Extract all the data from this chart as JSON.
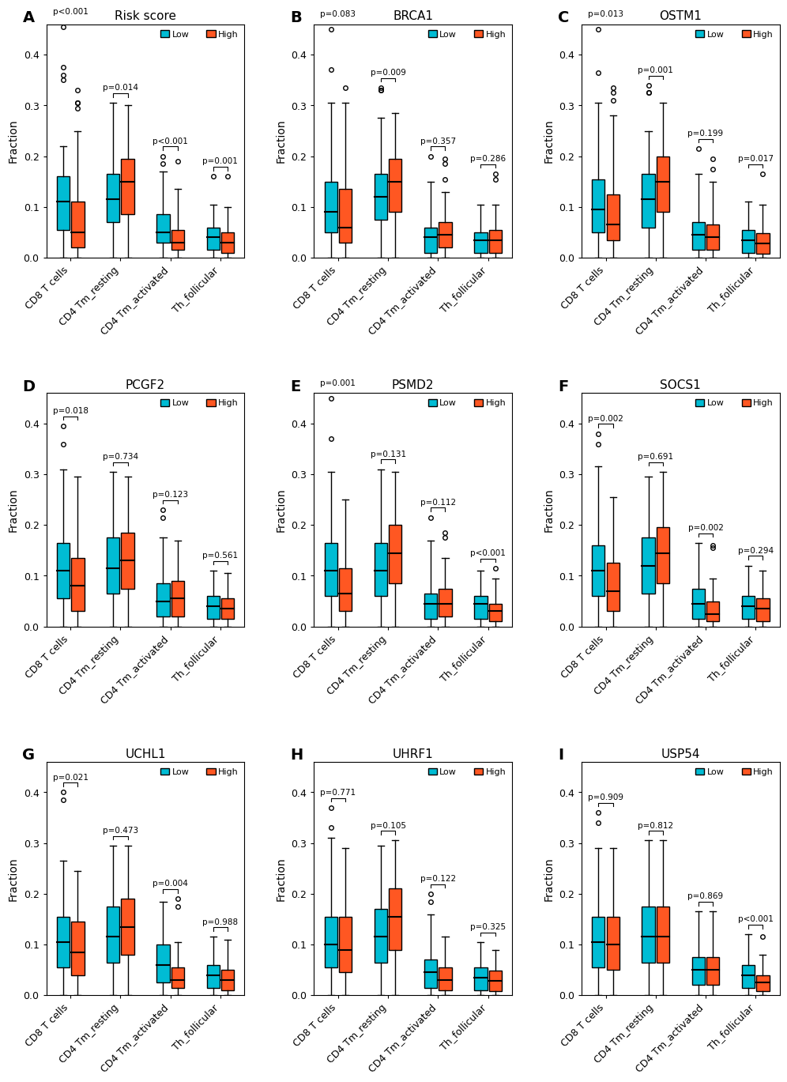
{
  "panels": [
    {
      "label": "A",
      "title": "Risk score",
      "categories": [
        "CD8 T cells",
        "CD4 Tm_resting",
        "CD4 Tm_activated",
        "Th_follicular"
      ],
      "pvalues": [
        "p<0.001",
        "p=0.014",
        "p<0.001",
        "p=0.001"
      ],
      "low": {
        "CD8 T cells": {
          "q1": 0.055,
          "median": 0.11,
          "q3": 0.16,
          "whislo": 0.0,
          "whishi": 0.22,
          "fliers": [
            0.35,
            0.36,
            0.375,
            0.455
          ]
        },
        "CD4 Tm_resting": {
          "q1": 0.07,
          "median": 0.115,
          "q3": 0.165,
          "whislo": 0.0,
          "whishi": 0.305,
          "fliers": []
        },
        "CD4 Tm_activated": {
          "q1": 0.03,
          "median": 0.05,
          "q3": 0.085,
          "whislo": 0.0,
          "whishi": 0.17,
          "fliers": [
            0.2,
            0.185
          ]
        },
        "Th_follicular": {
          "q1": 0.015,
          "median": 0.04,
          "q3": 0.06,
          "whislo": 0.0,
          "whishi": 0.105,
          "fliers": [
            0.16
          ]
        }
      },
      "high": {
        "CD8 T cells": {
          "q1": 0.02,
          "median": 0.05,
          "q3": 0.11,
          "whislo": 0.0,
          "whishi": 0.25,
          "fliers": [
            0.305,
            0.295,
            0.305,
            0.33
          ]
        },
        "CD4 Tm_resting": {
          "q1": 0.085,
          "median": 0.15,
          "q3": 0.195,
          "whislo": 0.0,
          "whishi": 0.3,
          "fliers": []
        },
        "CD4 Tm_activated": {
          "q1": 0.015,
          "median": 0.03,
          "q3": 0.055,
          "whislo": 0.0,
          "whishi": 0.135,
          "fliers": [
            0.19
          ]
        },
        "Th_follicular": {
          "q1": 0.01,
          "median": 0.03,
          "q3": 0.05,
          "whislo": 0.0,
          "whishi": 0.1,
          "fliers": [
            0.16
          ]
        }
      }
    },
    {
      "label": "B",
      "title": "BRCA1",
      "categories": [
        "CD8 T cells",
        "CD4 Tm_resting",
        "CD4 Tm_activated",
        "Th_follicular"
      ],
      "pvalues": [
        "p=0.083",
        "p=0.009",
        "p=0.357",
        "p=0.286"
      ],
      "low": {
        "CD8 T cells": {
          "q1": 0.05,
          "median": 0.09,
          "q3": 0.15,
          "whislo": 0.0,
          "whishi": 0.305,
          "fliers": [
            0.37,
            0.45
          ]
        },
        "CD4 Tm_resting": {
          "q1": 0.075,
          "median": 0.12,
          "q3": 0.165,
          "whislo": 0.0,
          "whishi": 0.275,
          "fliers": [
            0.33,
            0.33,
            0.335
          ]
        },
        "CD4 Tm_activated": {
          "q1": 0.01,
          "median": 0.04,
          "q3": 0.06,
          "whislo": 0.0,
          "whishi": 0.15,
          "fliers": [
            0.2
          ]
        },
        "Th_follicular": {
          "q1": 0.01,
          "median": 0.035,
          "q3": 0.05,
          "whislo": 0.0,
          "whishi": 0.105,
          "fliers": []
        }
      },
      "high": {
        "CD8 T cells": {
          "q1": 0.03,
          "median": 0.06,
          "q3": 0.135,
          "whislo": 0.0,
          "whishi": 0.305,
          "fliers": [
            0.335
          ]
        },
        "CD4 Tm_resting": {
          "q1": 0.09,
          "median": 0.15,
          "q3": 0.195,
          "whislo": 0.0,
          "whishi": 0.285,
          "fliers": []
        },
        "CD4 Tm_activated": {
          "q1": 0.02,
          "median": 0.045,
          "q3": 0.07,
          "whislo": 0.0,
          "whishi": 0.13,
          "fliers": [
            0.155,
            0.195,
            0.185
          ]
        },
        "Th_follicular": {
          "q1": 0.01,
          "median": 0.035,
          "q3": 0.055,
          "whislo": 0.0,
          "whishi": 0.105,
          "fliers": [
            0.155,
            0.165
          ]
        }
      }
    },
    {
      "label": "C",
      "title": "OSTM1",
      "categories": [
        "CD8 T cells",
        "CD4 Tm_resting",
        "CD4 Tm_activated",
        "Th_follicular"
      ],
      "pvalues": [
        "p=0.013",
        "p=0.001",
        "p=0.199",
        "p=0.017"
      ],
      "low": {
        "CD8 T cells": {
          "q1": 0.05,
          "median": 0.095,
          "q3": 0.155,
          "whislo": 0.0,
          "whishi": 0.305,
          "fliers": [
            0.365,
            0.45
          ]
        },
        "CD4 Tm_resting": {
          "q1": 0.06,
          "median": 0.115,
          "q3": 0.165,
          "whislo": 0.0,
          "whishi": 0.25,
          "fliers": [
            0.325,
            0.325,
            0.34
          ]
        },
        "CD4 Tm_activated": {
          "q1": 0.015,
          "median": 0.045,
          "q3": 0.07,
          "whislo": 0.0,
          "whishi": 0.165,
          "fliers": [
            0.215
          ]
        },
        "Th_follicular": {
          "q1": 0.01,
          "median": 0.035,
          "q3": 0.055,
          "whislo": 0.0,
          "whishi": 0.11,
          "fliers": []
        }
      },
      "high": {
        "CD8 T cells": {
          "q1": 0.035,
          "median": 0.065,
          "q3": 0.125,
          "whislo": 0.0,
          "whishi": 0.28,
          "fliers": [
            0.31,
            0.325,
            0.335
          ]
        },
        "CD4 Tm_resting": {
          "q1": 0.09,
          "median": 0.15,
          "q3": 0.2,
          "whislo": 0.0,
          "whishi": 0.305,
          "fliers": []
        },
        "CD4 Tm_activated": {
          "q1": 0.015,
          "median": 0.04,
          "q3": 0.065,
          "whislo": 0.0,
          "whishi": 0.15,
          "fliers": [
            0.195,
            0.175
          ]
        },
        "Th_follicular": {
          "q1": 0.008,
          "median": 0.028,
          "q3": 0.048,
          "whislo": 0.0,
          "whishi": 0.105,
          "fliers": [
            0.165
          ]
        }
      }
    },
    {
      "label": "D",
      "title": "PCGF2",
      "categories": [
        "CD8 T cells",
        "CD4 Tm_resting",
        "CD4 Tm_activated",
        "Th_follicular"
      ],
      "pvalues": [
        "p=0.018",
        "p=0.734",
        "p=0.123",
        "p=0.561"
      ],
      "low": {
        "CD8 T cells": {
          "q1": 0.055,
          "median": 0.11,
          "q3": 0.165,
          "whislo": 0.0,
          "whishi": 0.31,
          "fliers": [
            0.36,
            0.395
          ]
        },
        "CD4 Tm_resting": {
          "q1": 0.065,
          "median": 0.115,
          "q3": 0.175,
          "whislo": 0.0,
          "whishi": 0.305,
          "fliers": []
        },
        "CD4 Tm_activated": {
          "q1": 0.02,
          "median": 0.05,
          "q3": 0.085,
          "whislo": 0.0,
          "whishi": 0.175,
          "fliers": [
            0.215,
            0.23
          ]
        },
        "Th_follicular": {
          "q1": 0.015,
          "median": 0.04,
          "q3": 0.06,
          "whislo": 0.0,
          "whishi": 0.11,
          "fliers": []
        }
      },
      "high": {
        "CD8 T cells": {
          "q1": 0.03,
          "median": 0.08,
          "q3": 0.135,
          "whislo": 0.0,
          "whishi": 0.295,
          "fliers": []
        },
        "CD4 Tm_resting": {
          "q1": 0.075,
          "median": 0.13,
          "q3": 0.185,
          "whislo": 0.0,
          "whishi": 0.295,
          "fliers": []
        },
        "CD4 Tm_activated": {
          "q1": 0.02,
          "median": 0.055,
          "q3": 0.09,
          "whislo": 0.0,
          "whishi": 0.17,
          "fliers": []
        },
        "Th_follicular": {
          "q1": 0.015,
          "median": 0.035,
          "q3": 0.055,
          "whislo": 0.0,
          "whishi": 0.105,
          "fliers": []
        }
      }
    },
    {
      "label": "E",
      "title": "PSMD2",
      "categories": [
        "CD8 T cells",
        "CD4 Tm_resting",
        "CD4 Tm_activated",
        "Th_follicular"
      ],
      "pvalues": [
        "p=0.001",
        "p=0.131",
        "p=0.112",
        "p<0.001"
      ],
      "low": {
        "CD8 T cells": {
          "q1": 0.06,
          "median": 0.11,
          "q3": 0.165,
          "whislo": 0.0,
          "whishi": 0.305,
          "fliers": [
            0.37,
            0.45
          ]
        },
        "CD4 Tm_resting": {
          "q1": 0.06,
          "median": 0.11,
          "q3": 0.165,
          "whislo": 0.0,
          "whishi": 0.31,
          "fliers": []
        },
        "CD4 Tm_activated": {
          "q1": 0.015,
          "median": 0.045,
          "q3": 0.065,
          "whislo": 0.0,
          "whishi": 0.17,
          "fliers": [
            0.215
          ]
        },
        "Th_follicular": {
          "q1": 0.015,
          "median": 0.045,
          "q3": 0.06,
          "whislo": 0.0,
          "whishi": 0.11,
          "fliers": []
        }
      },
      "high": {
        "CD8 T cells": {
          "q1": 0.03,
          "median": 0.065,
          "q3": 0.115,
          "whislo": 0.0,
          "whishi": 0.25,
          "fliers": []
        },
        "CD4 Tm_resting": {
          "q1": 0.085,
          "median": 0.145,
          "q3": 0.2,
          "whislo": 0.0,
          "whishi": 0.305,
          "fliers": []
        },
        "CD4 Tm_activated": {
          "q1": 0.02,
          "median": 0.045,
          "q3": 0.075,
          "whislo": 0.0,
          "whishi": 0.135,
          "fliers": [
            0.185,
            0.175
          ]
        },
        "Th_follicular": {
          "q1": 0.01,
          "median": 0.03,
          "q3": 0.045,
          "whislo": 0.0,
          "whishi": 0.095,
          "fliers": [
            0.115
          ]
        }
      }
    },
    {
      "label": "F",
      "title": "SOCS1",
      "categories": [
        "CD8 T cells",
        "CD4 Tm_resting",
        "CD4 Tm_activated",
        "Th_follicular"
      ],
      "pvalues": [
        "p=0.002",
        "p=0.691",
        "p=0.002",
        "p=0.294"
      ],
      "low": {
        "CD8 T cells": {
          "q1": 0.06,
          "median": 0.11,
          "q3": 0.16,
          "whislo": 0.0,
          "whishi": 0.315,
          "fliers": [
            0.36,
            0.38
          ]
        },
        "CD4 Tm_resting": {
          "q1": 0.065,
          "median": 0.12,
          "q3": 0.175,
          "whislo": 0.0,
          "whishi": 0.295,
          "fliers": []
        },
        "CD4 Tm_activated": {
          "q1": 0.015,
          "median": 0.045,
          "q3": 0.075,
          "whislo": 0.0,
          "whishi": 0.165,
          "fliers": []
        },
        "Th_follicular": {
          "q1": 0.015,
          "median": 0.04,
          "q3": 0.06,
          "whislo": 0.0,
          "whishi": 0.12,
          "fliers": []
        }
      },
      "high": {
        "CD8 T cells": {
          "q1": 0.03,
          "median": 0.07,
          "q3": 0.125,
          "whislo": 0.0,
          "whishi": 0.255,
          "fliers": []
        },
        "CD4 Tm_resting": {
          "q1": 0.085,
          "median": 0.145,
          "q3": 0.195,
          "whislo": 0.0,
          "whishi": 0.305,
          "fliers": []
        },
        "CD4 Tm_activated": {
          "q1": 0.01,
          "median": 0.025,
          "q3": 0.05,
          "whislo": 0.0,
          "whishi": 0.095,
          "fliers": [
            0.155,
            0.16
          ]
        },
        "Th_follicular": {
          "q1": 0.01,
          "median": 0.035,
          "q3": 0.055,
          "whislo": 0.0,
          "whishi": 0.11,
          "fliers": []
        }
      }
    },
    {
      "label": "G",
      "title": "UCHL1",
      "categories": [
        "CD8 T cells",
        "CD4 Tm_resting",
        "CD4 Tm_activated",
        "Th_follicular"
      ],
      "pvalues": [
        "p=0.021",
        "p=0.473",
        "p=0.004",
        "p=0.988"
      ],
      "low": {
        "CD8 T cells": {
          "q1": 0.055,
          "median": 0.105,
          "q3": 0.155,
          "whislo": 0.0,
          "whishi": 0.265,
          "fliers": [
            0.4,
            0.385
          ]
        },
        "CD4 Tm_resting": {
          "q1": 0.065,
          "median": 0.115,
          "q3": 0.175,
          "whislo": 0.0,
          "whishi": 0.295,
          "fliers": []
        },
        "CD4 Tm_activated": {
          "q1": 0.025,
          "median": 0.06,
          "q3": 0.1,
          "whislo": 0.0,
          "whishi": 0.185,
          "fliers": []
        },
        "Th_follicular": {
          "q1": 0.015,
          "median": 0.04,
          "q3": 0.06,
          "whislo": 0.0,
          "whishi": 0.115,
          "fliers": []
        }
      },
      "high": {
        "CD8 T cells": {
          "q1": 0.04,
          "median": 0.085,
          "q3": 0.145,
          "whislo": 0.0,
          "whishi": 0.245,
          "fliers": []
        },
        "CD4 Tm_resting": {
          "q1": 0.08,
          "median": 0.135,
          "q3": 0.19,
          "whislo": 0.0,
          "whishi": 0.295,
          "fliers": []
        },
        "CD4 Tm_activated": {
          "q1": 0.015,
          "median": 0.03,
          "q3": 0.055,
          "whislo": 0.0,
          "whishi": 0.105,
          "fliers": [
            0.19,
            0.175
          ]
        },
        "Th_follicular": {
          "q1": 0.01,
          "median": 0.03,
          "q3": 0.05,
          "whislo": 0.0,
          "whishi": 0.11,
          "fliers": []
        }
      }
    },
    {
      "label": "H",
      "title": "UHRF1",
      "categories": [
        "CD8 T cells",
        "CD4 Tm_resting",
        "CD4 Tm_activated",
        "Th_follicular"
      ],
      "pvalues": [
        "p=0.771",
        "p=0.105",
        "p=0.122",
        "p=0.325"
      ],
      "low": {
        "CD8 T cells": {
          "q1": 0.055,
          "median": 0.1,
          "q3": 0.155,
          "whislo": 0.0,
          "whishi": 0.31,
          "fliers": [
            0.33,
            0.37
          ]
        },
        "CD4 Tm_resting": {
          "q1": 0.065,
          "median": 0.115,
          "q3": 0.17,
          "whislo": 0.0,
          "whishi": 0.295,
          "fliers": []
        },
        "CD4 Tm_activated": {
          "q1": 0.015,
          "median": 0.045,
          "q3": 0.07,
          "whislo": 0.0,
          "whishi": 0.16,
          "fliers": [
            0.2,
            0.185
          ]
        },
        "Th_follicular": {
          "q1": 0.01,
          "median": 0.035,
          "q3": 0.055,
          "whislo": 0.0,
          "whishi": 0.105,
          "fliers": []
        }
      },
      "high": {
        "CD8 T cells": {
          "q1": 0.045,
          "median": 0.09,
          "q3": 0.155,
          "whislo": 0.0,
          "whishi": 0.29,
          "fliers": []
        },
        "CD4 Tm_resting": {
          "q1": 0.09,
          "median": 0.155,
          "q3": 0.21,
          "whislo": 0.0,
          "whishi": 0.305,
          "fliers": []
        },
        "CD4 Tm_activated": {
          "q1": 0.01,
          "median": 0.03,
          "q3": 0.055,
          "whislo": 0.0,
          "whishi": 0.115,
          "fliers": []
        },
        "Th_follicular": {
          "q1": 0.008,
          "median": 0.028,
          "q3": 0.048,
          "whislo": 0.0,
          "whishi": 0.09,
          "fliers": []
        }
      }
    },
    {
      "label": "I",
      "title": "USP54",
      "categories": [
        "CD8 T cells",
        "CD4 Tm_resting",
        "CD4 Tm_activated",
        "Th_follicular"
      ],
      "pvalues": [
        "p=0.909",
        "p=0.812",
        "p=0.869",
        "p<0.001"
      ],
      "low": {
        "CD8 T cells": {
          "q1": 0.055,
          "median": 0.105,
          "q3": 0.155,
          "whislo": 0.0,
          "whishi": 0.29,
          "fliers": [
            0.34,
            0.36
          ]
        },
        "CD4 Tm_resting": {
          "q1": 0.065,
          "median": 0.115,
          "q3": 0.175,
          "whislo": 0.0,
          "whishi": 0.305,
          "fliers": []
        },
        "CD4 Tm_activated": {
          "q1": 0.02,
          "median": 0.05,
          "q3": 0.075,
          "whislo": 0.0,
          "whishi": 0.165,
          "fliers": []
        },
        "Th_follicular": {
          "q1": 0.015,
          "median": 0.04,
          "q3": 0.06,
          "whislo": 0.0,
          "whishi": 0.12,
          "fliers": []
        }
      },
      "high": {
        "CD8 T cells": {
          "q1": 0.05,
          "median": 0.1,
          "q3": 0.155,
          "whislo": 0.0,
          "whishi": 0.29,
          "fliers": []
        },
        "CD4 Tm_resting": {
          "q1": 0.065,
          "median": 0.115,
          "q3": 0.175,
          "whislo": 0.0,
          "whishi": 0.305,
          "fliers": []
        },
        "CD4 Tm_activated": {
          "q1": 0.02,
          "median": 0.05,
          "q3": 0.075,
          "whislo": 0.0,
          "whishi": 0.165,
          "fliers": []
        },
        "Th_follicular": {
          "q1": 0.008,
          "median": 0.025,
          "q3": 0.04,
          "whislo": 0.0,
          "whishi": 0.08,
          "fliers": [
            0.115
          ]
        }
      }
    }
  ],
  "low_color": "#00BCD4",
  "high_color": "#FF5722",
  "ylim": [
    0,
    0.46
  ],
  "yticks": [
    0.0,
    0.1,
    0.2,
    0.3,
    0.4
  ],
  "ylabel": "Fraction",
  "box_width": 0.32,
  "flier_size": 4
}
